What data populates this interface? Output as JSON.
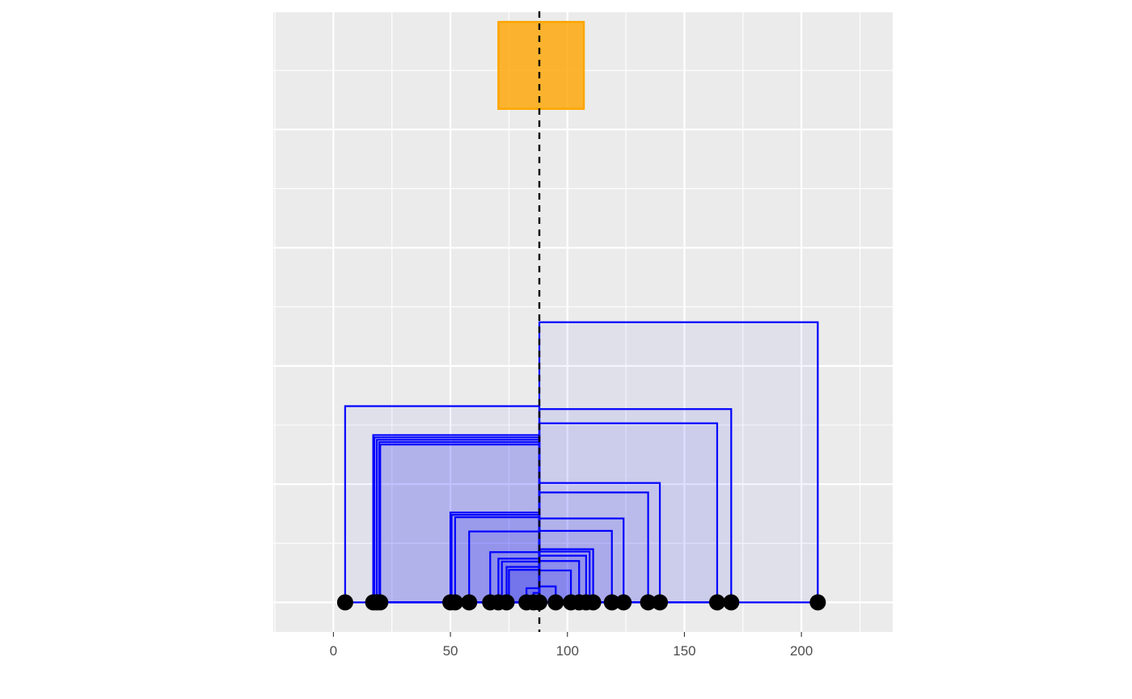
{
  "chart_data": {
    "type": "scatter",
    "title": "",
    "xlabel": "",
    "ylabel": "",
    "xlim": [
      -25.7,
      239
    ],
    "x_ticks": [
      0,
      50,
      100,
      150,
      200
    ],
    "x_tick_labels": [
      "0",
      "50",
      "100",
      "150",
      "200"
    ],
    "ylim": [
      -0.5,
      10
    ],
    "y_major_gridlines": [
      0,
      2,
      4,
      6,
      8,
      10
    ],
    "y_minor_gridlines": [
      1,
      3,
      5,
      7,
      9
    ],
    "y_axis_labels_shown": false,
    "grid": true,
    "legend": "none",
    "reference_line": {
      "x": 88,
      "style": "dashed",
      "color": "#000000"
    },
    "highlight_box": {
      "xmin": 70.5,
      "xmax": 107,
      "ymin": 8.35,
      "ymax": 9.82,
      "color": "#FFA500"
    },
    "points": {
      "y": 0,
      "x": [
        5,
        17,
        18.5,
        20,
        50,
        52,
        58,
        67,
        70.5,
        74,
        82.5,
        85.5,
        88,
        95,
        101.5,
        105,
        108,
        111,
        119,
        124,
        134.5,
        139.5,
        164,
        170,
        207
      ]
    },
    "intervals": [
      {
        "xmin": 5,
        "xmax": 88,
        "height": 3.32
      },
      {
        "xmin": 17,
        "xmax": 88,
        "height": 2.83
      },
      {
        "xmin": 17.5,
        "xmax": 88,
        "height": 2.79
      },
      {
        "xmin": 18.5,
        "xmax": 88,
        "height": 2.75
      },
      {
        "xmin": 19.5,
        "xmax": 88,
        "height": 2.71
      },
      {
        "xmin": 20,
        "xmax": 88,
        "height": 2.67
      },
      {
        "xmin": 50,
        "xmax": 88,
        "height": 1.52
      },
      {
        "xmin": 50.5,
        "xmax": 88,
        "height": 1.48
      },
      {
        "xmin": 52,
        "xmax": 88,
        "height": 1.44
      },
      {
        "xmin": 58,
        "xmax": 88,
        "height": 1.2
      },
      {
        "xmin": 67,
        "xmax": 88,
        "height": 0.85
      },
      {
        "xmin": 70.5,
        "xmax": 88,
        "height": 0.74
      },
      {
        "xmin": 72,
        "xmax": 88,
        "height": 0.69
      },
      {
        "xmin": 74,
        "xmax": 88,
        "height": 0.6
      },
      {
        "xmin": 75,
        "xmax": 88,
        "height": 0.55
      },
      {
        "xmin": 82.5,
        "xmax": 88,
        "height": 0.24
      },
      {
        "xmin": 85.5,
        "xmax": 88,
        "height": 0.16
      },
      {
        "xmin": 88,
        "xmax": 95,
        "height": 0.27
      },
      {
        "xmin": 88,
        "xmax": 101.5,
        "height": 0.54
      },
      {
        "xmin": 88,
        "xmax": 105,
        "height": 0.7
      },
      {
        "xmin": 88,
        "xmax": 108,
        "height": 0.79
      },
      {
        "xmin": 88,
        "xmax": 109.5,
        "height": 0.86
      },
      {
        "xmin": 88,
        "xmax": 111,
        "height": 0.9
      },
      {
        "xmin": 88,
        "xmax": 119,
        "height": 1.21
      },
      {
        "xmin": 88,
        "xmax": 124,
        "height": 1.42
      },
      {
        "xmin": 88,
        "xmax": 134.5,
        "height": 1.86
      },
      {
        "xmin": 88,
        "xmax": 139.5,
        "height": 2.02
      },
      {
        "xmin": 88,
        "xmax": 164,
        "height": 3.03
      },
      {
        "xmin": 88,
        "xmax": 170,
        "height": 3.27
      },
      {
        "xmin": 88,
        "xmax": 207,
        "height": 4.74
      }
    ],
    "colors": {
      "panel_background": "#EBEBEB",
      "grid": "#FFFFFF",
      "interval_stroke": "#0000FF",
      "interval_fill": "#0000FF",
      "points": "#000000",
      "highlight": "#FFA500",
      "tick_text": "#4D4D4D"
    }
  }
}
